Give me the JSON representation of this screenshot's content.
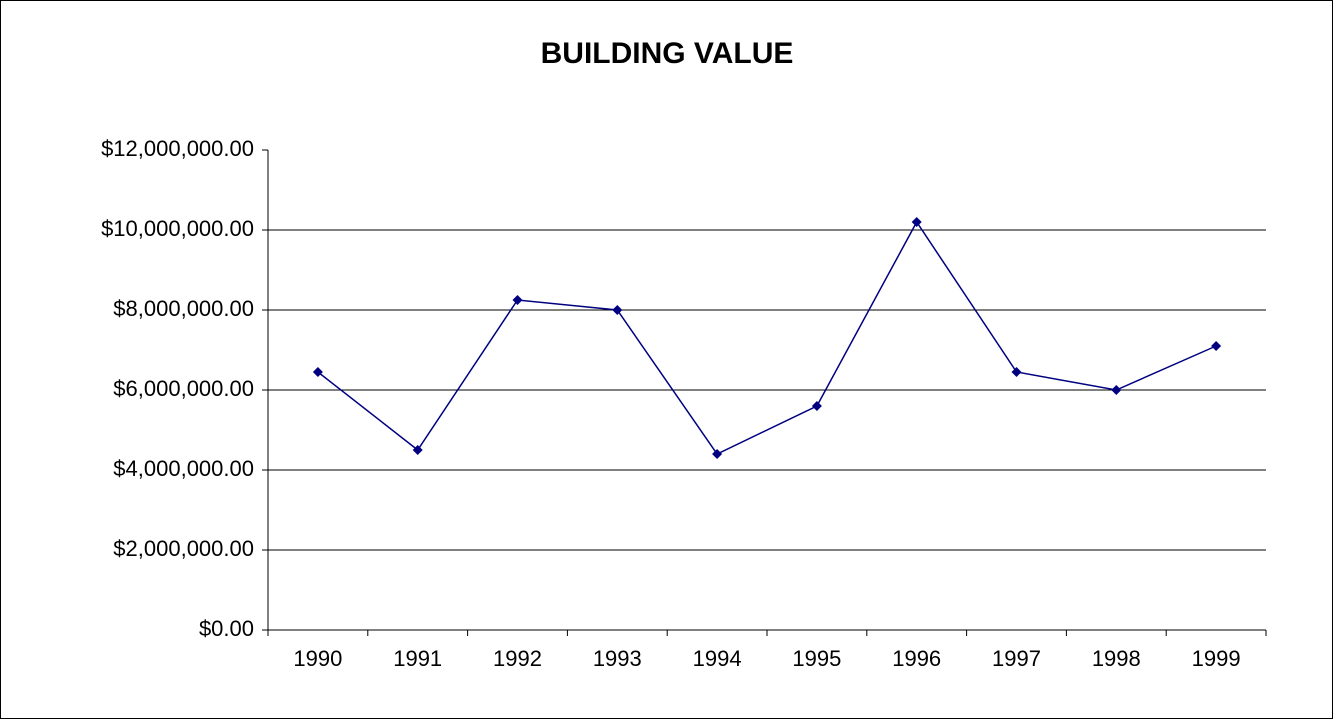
{
  "chart_data": {
    "type": "line",
    "title": "BUILDING VALUE",
    "categories": [
      "1990",
      "1991",
      "1992",
      "1993",
      "1994",
      "1995",
      "1996",
      "1997",
      "1998",
      "1999"
    ],
    "series": [
      {
        "name": "Building Value",
        "color": "#000080",
        "values": [
          6450000,
          4500000,
          8250000,
          8000000,
          4400000,
          5600000,
          10200000,
          6450000,
          6000000,
          7100000
        ]
      }
    ],
    "ylim": [
      0,
      12000000
    ],
    "yticks": [
      {
        "value": 0,
        "label": "$0.00"
      },
      {
        "value": 2000000,
        "label": "$2,000,000.00"
      },
      {
        "value": 4000000,
        "label": "$4,000,000.00"
      },
      {
        "value": 6000000,
        "label": "$6,000,000.00"
      },
      {
        "value": 8000000,
        "label": "$8,000,000.00"
      },
      {
        "value": 10000000,
        "label": "$10,000,000.00"
      },
      {
        "value": 12000000,
        "label": "$12,000,000.00"
      }
    ],
    "grid": true,
    "legend": false
  }
}
